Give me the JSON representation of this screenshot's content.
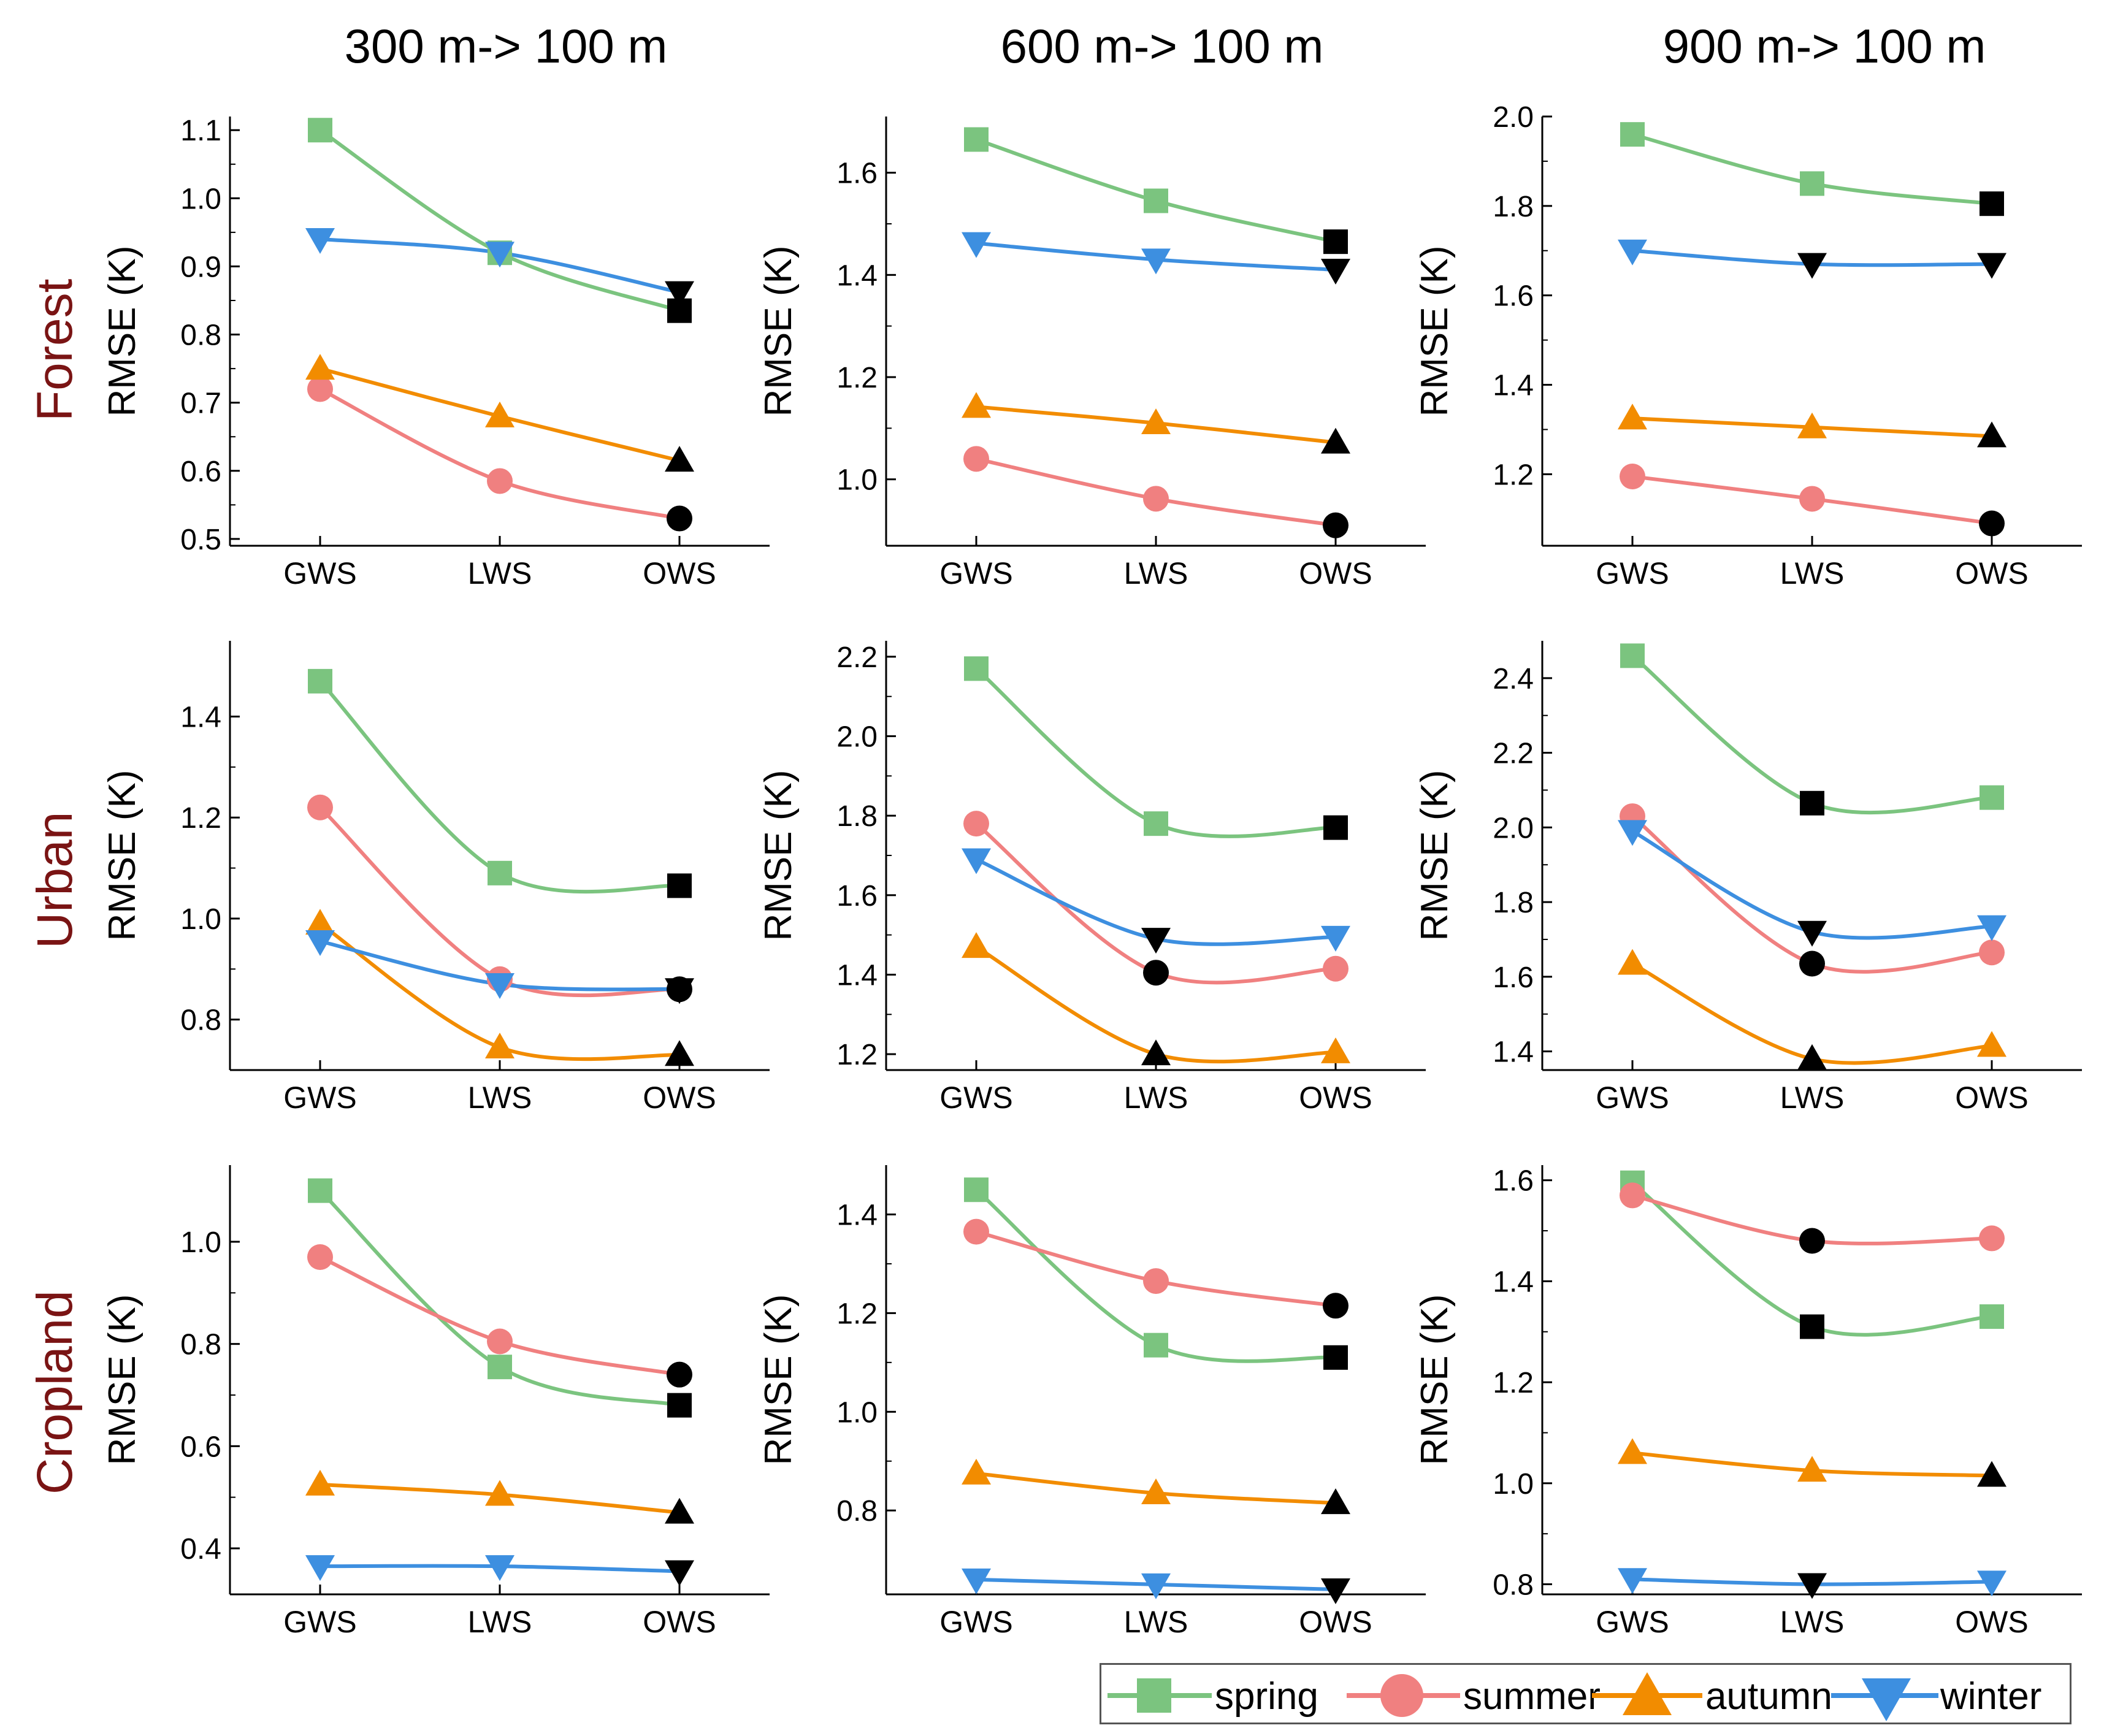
{
  "figure": {
    "column_titles": [
      "300 m-> 100 m",
      "600 m-> 100 m",
      "900 m-> 100 m"
    ],
    "row_titles": [
      "Forest",
      "Urban",
      "Cropland"
    ],
    "row_title_color": "#7a1414"
  },
  "legend": {
    "items": [
      {
        "name": "spring",
        "color": "#7bc47f",
        "marker": "square"
      },
      {
        "name": "summer",
        "color": "#f08080",
        "marker": "circle"
      },
      {
        "name": "autumn",
        "color": "#f28c00",
        "marker": "triangle-up"
      },
      {
        "name": "winter",
        "color": "#3d8fe0",
        "marker": "triangle-down"
      }
    ]
  },
  "chart_data": [
    {
      "type": "line",
      "title": "300 m-> 100 m",
      "row": "Forest",
      "categories": [
        "GWS",
        "LWS",
        "OWS"
      ],
      "ylabel": "RMSE (K)",
      "ylim": [
        0.49,
        1.12
      ],
      "yticks": [
        0.5,
        0.6,
        0.7,
        0.8,
        0.9,
        1.0,
        1.1
      ],
      "ytick_labels": [
        "0.5",
        "0.6",
        "0.7",
        "0.8",
        "0.9",
        "1.0",
        "1.1"
      ],
      "series": [
        {
          "name": "spring",
          "values": [
            1.1,
            0.92,
            0.835
          ]
        },
        {
          "name": "summer",
          "values": [
            0.72,
            0.585,
            0.53
          ]
        },
        {
          "name": "autumn",
          "values": [
            0.75,
            0.68,
            0.615
          ]
        },
        {
          "name": "winter",
          "values": [
            0.94,
            0.92,
            0.862
          ]
        }
      ]
    },
    {
      "type": "line",
      "title": "600 m-> 100 m",
      "row": "Forest",
      "categories": [
        "GWS",
        "LWS",
        "OWS"
      ],
      "ylabel": "RMSE (K)",
      "ylim": [
        0.87,
        1.71
      ],
      "yticks": [
        1.0,
        1.2,
        1.4,
        1.6
      ],
      "ytick_labels": [
        "1.0",
        "1.2",
        "1.4",
        "1.6"
      ],
      "series": [
        {
          "name": "spring",
          "values": [
            1.665,
            1.545,
            1.465
          ]
        },
        {
          "name": "summer",
          "values": [
            1.04,
            0.962,
            0.91
          ]
        },
        {
          "name": "autumn",
          "values": [
            1.142,
            1.11,
            1.072
          ]
        },
        {
          "name": "winter",
          "values": [
            1.462,
            1.43,
            1.41
          ]
        }
      ]
    },
    {
      "type": "line",
      "title": "900 m-> 100 m",
      "row": "Forest",
      "categories": [
        "GWS",
        "LWS",
        "OWS"
      ],
      "ylabel": "RMSE (K)",
      "ylim": [
        1.04,
        2.0
      ],
      "yticks": [
        1.2,
        1.4,
        1.6,
        1.8,
        2.0
      ],
      "ytick_labels": [
        "1.2",
        "1.4",
        "1.6",
        "1.8",
        "2.0"
      ],
      "series": [
        {
          "name": "spring",
          "values": [
            1.96,
            1.85,
            1.805
          ]
        },
        {
          "name": "summer",
          "values": [
            1.195,
            1.145,
            1.09
          ]
        },
        {
          "name": "autumn",
          "values": [
            1.325,
            1.305,
            1.285
          ]
        },
        {
          "name": "winter",
          "values": [
            1.7,
            1.67,
            1.67
          ]
        }
      ]
    },
    {
      "type": "line",
      "title": "300 m-> 100 m",
      "row": "Urban",
      "categories": [
        "GWS",
        "LWS",
        "OWS"
      ],
      "ylabel": "RMSE (K)",
      "ylim": [
        0.7,
        1.55
      ],
      "yticks": [
        0.8,
        1.0,
        1.2,
        1.4
      ],
      "ytick_labels": [
        "0.8",
        "1.0",
        "1.2",
        "1.4"
      ],
      "series": [
        {
          "name": "spring",
          "values": [
            1.47,
            1.09,
            1.065
          ]
        },
        {
          "name": "summer",
          "values": [
            1.22,
            0.88,
            0.86
          ]
        },
        {
          "name": "autumn",
          "values": [
            0.99,
            0.745,
            0.73
          ]
        },
        {
          "name": "winter",
          "values": [
            0.955,
            0.87,
            0.86
          ]
        }
      ]
    },
    {
      "type": "line",
      "title": "600 m-> 100 m",
      "row": "Urban",
      "categories": [
        "GWS",
        "LWS",
        "OWS"
      ],
      "ylabel": "RMSE (K)",
      "ylim": [
        1.16,
        2.24
      ],
      "yticks": [
        1.2,
        1.4,
        1.6,
        1.8,
        2.0,
        2.2
      ],
      "ytick_labels": [
        "1.2",
        "1.4",
        "1.6",
        "1.8",
        "2.0",
        "2.2"
      ],
      "series": [
        {
          "name": "spring",
          "values": [
            2.17,
            1.78,
            1.77
          ]
        },
        {
          "name": "summer",
          "values": [
            1.78,
            1.405,
            1.415
          ]
        },
        {
          "name": "autumn",
          "values": [
            1.47,
            1.2,
            1.205
          ]
        },
        {
          "name": "winter",
          "values": [
            1.69,
            1.49,
            1.495
          ]
        }
      ]
    },
    {
      "type": "line",
      "title": "900 m-> 100 m",
      "row": "Urban",
      "categories": [
        "GWS",
        "LWS",
        "OWS"
      ],
      "ylabel": "RMSE (K)",
      "ylim": [
        1.35,
        2.5
      ],
      "yticks": [
        1.4,
        1.6,
        1.8,
        2.0,
        2.2,
        2.4
      ],
      "ytick_labels": [
        "1.4",
        "1.6",
        "1.8",
        "2.0",
        "2.2",
        "2.4"
      ],
      "series": [
        {
          "name": "spring",
          "values": [
            2.46,
            2.065,
            2.08
          ]
        },
        {
          "name": "summer",
          "values": [
            2.03,
            1.635,
            1.665
          ]
        },
        {
          "name": "autumn",
          "values": [
            1.635,
            1.38,
            1.415
          ]
        },
        {
          "name": "winter",
          "values": [
            1.99,
            1.72,
            1.735
          ]
        }
      ]
    },
    {
      "type": "line",
      "title": "300 m-> 100 m",
      "row": "Cropland",
      "categories": [
        "GWS",
        "LWS",
        "OWS"
      ],
      "ylabel": "RMSE (K)",
      "ylim": [
        0.31,
        1.15
      ],
      "yticks": [
        0.4,
        0.6,
        0.8,
        1.0
      ],
      "ytick_labels": [
        "0.4",
        "0.6",
        "0.8",
        "1.0"
      ],
      "series": [
        {
          "name": "spring",
          "values": [
            1.1,
            0.755,
            0.68
          ]
        },
        {
          "name": "summer",
          "values": [
            0.97,
            0.805,
            0.74
          ]
        },
        {
          "name": "autumn",
          "values": [
            0.525,
            0.505,
            0.47
          ]
        },
        {
          "name": "winter",
          "values": [
            0.365,
            0.365,
            0.355
          ]
        }
      ]
    },
    {
      "type": "line",
      "title": "600 m-> 100 m",
      "row": "Cropland",
      "categories": [
        "GWS",
        "LWS",
        "OWS"
      ],
      "ylabel": "RMSE (K)",
      "ylim": [
        0.63,
        1.5
      ],
      "yticks": [
        0.8,
        1.0,
        1.2,
        1.4
      ],
      "ytick_labels": [
        "0.8",
        "1.0",
        "1.2",
        "1.4"
      ],
      "series": [
        {
          "name": "spring",
          "values": [
            1.45,
            1.135,
            1.11
          ]
        },
        {
          "name": "summer",
          "values": [
            1.365,
            1.265,
            1.215
          ]
        },
        {
          "name": "autumn",
          "values": [
            0.875,
            0.835,
            0.815
          ]
        },
        {
          "name": "winter",
          "values": [
            0.66,
            0.65,
            0.64
          ]
        }
      ]
    },
    {
      "type": "line",
      "title": "900 m-> 100 m",
      "row": "Cropland",
      "categories": [
        "GWS",
        "LWS",
        "OWS"
      ],
      "ylabel": "RMSE (K)",
      "ylim": [
        0.78,
        1.63
      ],
      "yticks": [
        0.8,
        1.0,
        1.2,
        1.4,
        1.6
      ],
      "ytick_labels": [
        "0.8",
        "1.0",
        "1.2",
        "1.4",
        "1.6"
      ],
      "series": [
        {
          "name": "spring",
          "values": [
            1.595,
            1.31,
            1.33
          ]
        },
        {
          "name": "summer",
          "values": [
            1.57,
            1.48,
            1.485
          ]
        },
        {
          "name": "autumn",
          "values": [
            1.06,
            1.025,
            1.015
          ]
        },
        {
          "name": "winter",
          "values": [
            0.81,
            0.8,
            0.805
          ]
        }
      ]
    }
  ]
}
